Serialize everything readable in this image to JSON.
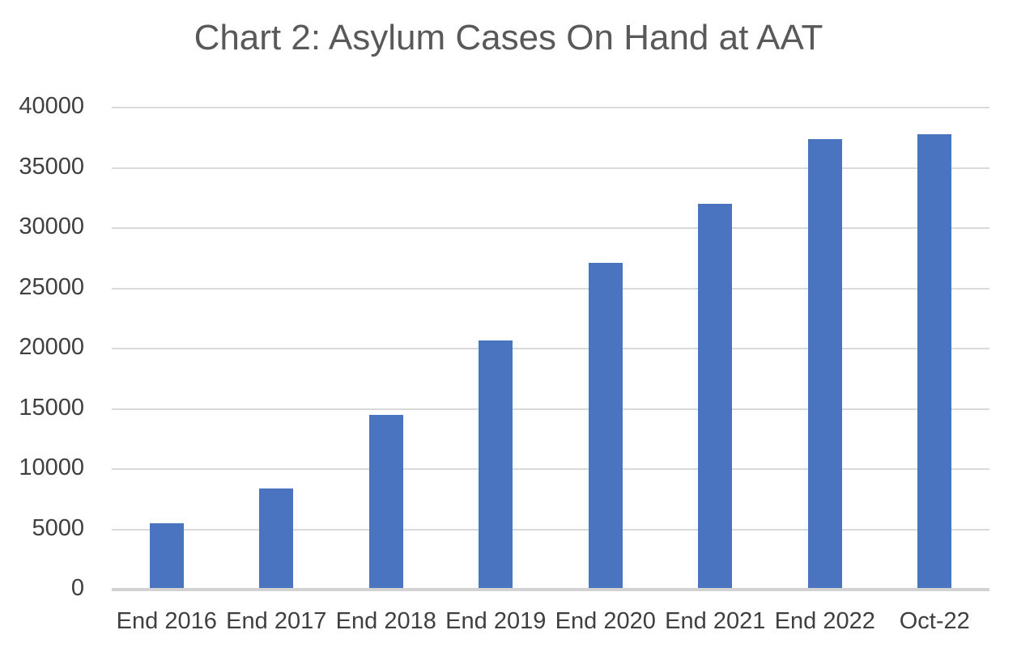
{
  "chart_data": {
    "type": "bar",
    "title": "Chart 2: Asylum Cases On Hand at AAT",
    "categories": [
      "End 2016",
      "End 2017",
      "End 2018",
      "End 2019",
      "End 2020",
      "End 2021",
      "End 2022",
      "Oct-22"
    ],
    "values": [
      5500,
      8400,
      14500,
      20700,
      27100,
      32000,
      37400,
      37800
    ],
    "xlabel": "",
    "ylabel": "",
    "ylim": [
      0,
      40000
    ],
    "ytick_step": 5000,
    "ytick_labels": [
      "0",
      "5000",
      "10000",
      "15000",
      "20000",
      "25000",
      "30000",
      "35000",
      "40000"
    ],
    "grid": "horizontal",
    "legend": "none",
    "colors": {
      "bar": "#4a73c0",
      "gridline": "#dadada",
      "axis_line": "#d2d2d2",
      "title_text": "#595959",
      "tick_text": "#3f3f3f",
      "background": "#ffffff"
    }
  }
}
